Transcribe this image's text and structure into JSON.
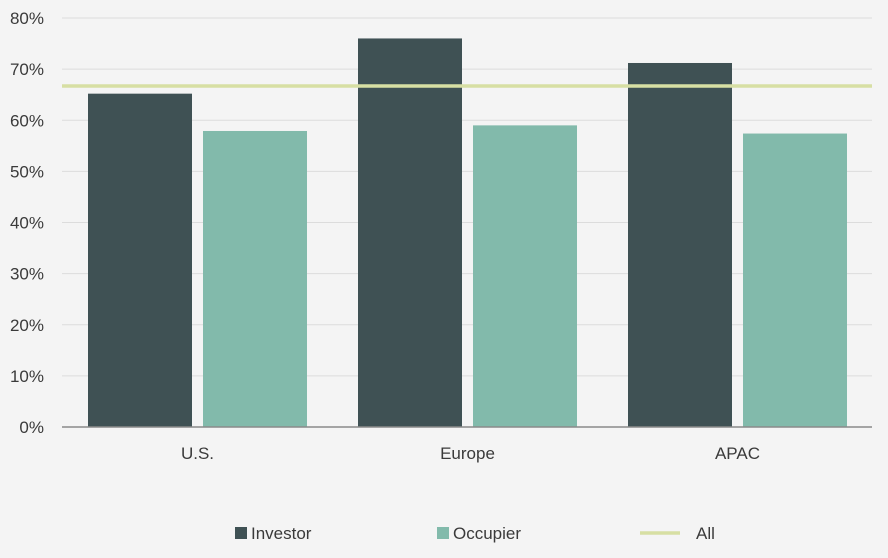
{
  "chart_data": {
    "type": "bar",
    "categories": [
      "U.S.",
      "Europe",
      "APAC"
    ],
    "series": [
      {
        "name": "Investor",
        "values": [
          65.2,
          76.0,
          71.2
        ],
        "color": "#3f5154"
      },
      {
        "name": "Occupier",
        "values": [
          57.9,
          59.0,
          57.4
        ],
        "color": "#82baab"
      }
    ],
    "reference_line": {
      "name": "All",
      "value": 66.7,
      "color": "#d7dfa3"
    },
    "ylim": [
      0,
      80
    ],
    "y_ticks": [
      0,
      10,
      20,
      30,
      40,
      50,
      60,
      70,
      80
    ],
    "y_tick_labels": [
      "0%",
      "10%",
      "20%",
      "30%",
      "40%",
      "50%",
      "60%",
      "70%",
      "80%"
    ],
    "grid": true,
    "legend_position": "bottom",
    "title": "",
    "xlabel": "",
    "ylabel": ""
  }
}
